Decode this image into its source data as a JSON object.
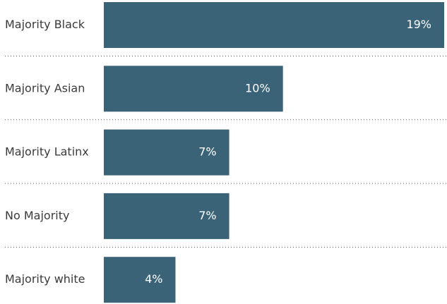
{
  "chart_data": {
    "type": "bar",
    "orientation": "horizontal",
    "categories": [
      "Majority Black",
      "Majority Asian",
      "Majority Latinx",
      "No Majority",
      "Majority white"
    ],
    "values": [
      19,
      10,
      7,
      7,
      4
    ],
    "value_labels": [
      "19%",
      "10%",
      "7%",
      "7%",
      "4%"
    ],
    "color": "#3b6378"
  }
}
